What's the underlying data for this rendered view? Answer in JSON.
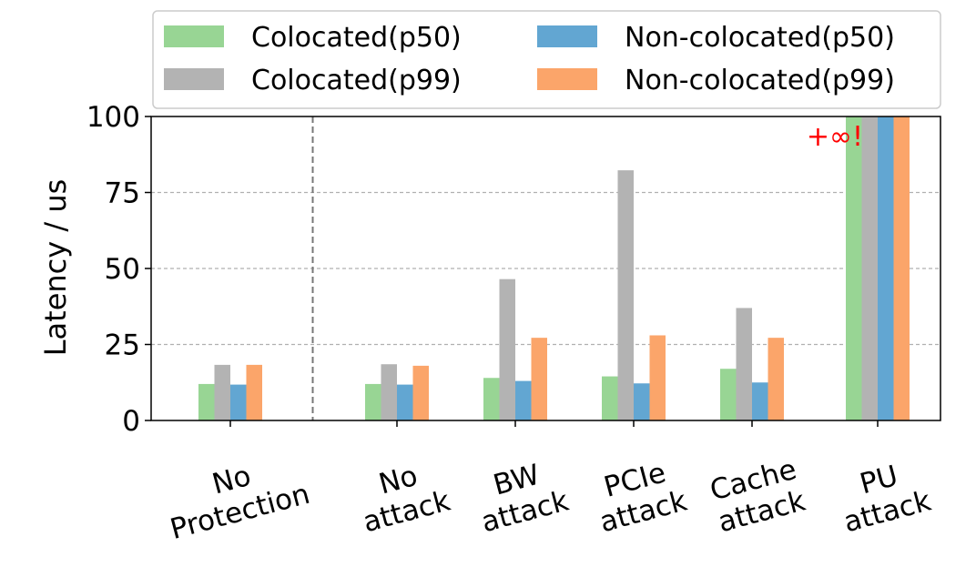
{
  "chart_data": {
    "type": "bar",
    "ylabel": "Latency / us",
    "ylim": [
      0,
      100
    ],
    "yticks": [
      0,
      25,
      50,
      75,
      100
    ],
    "grid": "horizontal-dashed",
    "legend_placement": "top",
    "categories": [
      [
        "No",
        "Protection"
      ],
      [
        "No",
        "attack"
      ],
      [
        "BW",
        "attack"
      ],
      [
        "PCIe",
        "attack"
      ],
      [
        "Cache",
        "attack"
      ],
      [
        "PU",
        "attack"
      ]
    ],
    "series": [
      {
        "name": "Colocated(p50)",
        "color": "#98d594",
        "values": [
          12,
          12,
          14,
          14.5,
          17,
          100
        ]
      },
      {
        "name": "Colocated(p99)",
        "color": "#b3b3b3",
        "values": [
          18.3,
          18.5,
          46.5,
          82.3,
          37,
          100
        ]
      },
      {
        "name": "Non-colocated(p50)",
        "color": "#62a6d2",
        "values": [
          11.8,
          11.8,
          13,
          12.2,
          12.5,
          100
        ]
      },
      {
        "name": "Non-colocated(p99)",
        "color": "#fba56a",
        "values": [
          18.3,
          18,
          27.2,
          28,
          27.2,
          100
        ]
      }
    ],
    "annotations": [
      {
        "text": "+∞!",
        "color": "#ff0000",
        "category_index": 5
      }
    ],
    "separator_after_category": 0
  }
}
